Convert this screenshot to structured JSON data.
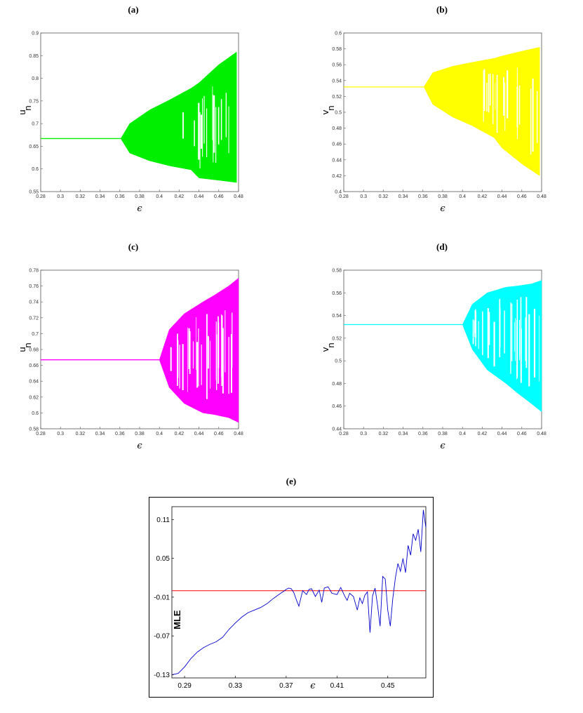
{
  "panels": [
    {
      "label": "(a)",
      "type": "bifurcation",
      "ylabel": "u",
      "ylabel_sub": "n",
      "xlabel": "ϵ",
      "color": "#00ee00",
      "xlim": [
        0.28,
        0.48
      ],
      "ylim": [
        0.55,
        0.9
      ],
      "xticks": [
        "0.28",
        "0.3",
        "0.32",
        "0.34",
        "0.36",
        "0.38",
        "0.4",
        "0.42",
        "0.44",
        "0.46",
        "0.48"
      ],
      "yticks": [
        "0.55",
        "0.6",
        "0.65",
        "0.7",
        "0.75",
        "0.8",
        "0.85",
        "0.9"
      ],
      "fixed_point": 0.667,
      "bifurcation_at": 0.361,
      "envelope": [
        {
          "x": 0.361,
          "lo": 0.667,
          "hi": 0.667
        },
        {
          "x": 0.37,
          "lo": 0.635,
          "hi": 0.7
        },
        {
          "x": 0.39,
          "lo": 0.618,
          "hi": 0.73
        },
        {
          "x": 0.41,
          "lo": 0.607,
          "hi": 0.752
        },
        {
          "x": 0.432,
          "lo": 0.598,
          "hi": 0.778
        },
        {
          "x": 0.44,
          "lo": 0.58,
          "hi": 0.79
        },
        {
          "x": 0.46,
          "lo": 0.575,
          "hi": 0.83
        },
        {
          "x": 0.478,
          "lo": 0.57,
          "hi": 0.858
        }
      ]
    },
    {
      "label": "(b)",
      "type": "bifurcation",
      "ylabel": "v",
      "ylabel_sub": "n",
      "xlabel": "ϵ",
      "color": "#ffff00",
      "xlim": [
        0.28,
        0.48
      ],
      "ylim": [
        0.4,
        0.6
      ],
      "xticks": [
        "0.28",
        "0.3",
        "0.32",
        "0.34",
        "0.36",
        "0.38",
        "0.4",
        "0.42",
        "0.44",
        "0.46",
        "0.48"
      ],
      "yticks": [
        "0.4",
        "0.42",
        "0.44",
        "0.46",
        "0.48",
        "0.5",
        "0.52",
        "0.54",
        "0.56",
        "0.58",
        "0.6"
      ],
      "fixed_point": 0.532,
      "bifurcation_at": 0.361,
      "envelope": [
        {
          "x": 0.361,
          "lo": 0.532,
          "hi": 0.532
        },
        {
          "x": 0.37,
          "lo": 0.51,
          "hi": 0.55
        },
        {
          "x": 0.39,
          "lo": 0.494,
          "hi": 0.558
        },
        {
          "x": 0.41,
          "lo": 0.483,
          "hi": 0.563
        },
        {
          "x": 0.432,
          "lo": 0.468,
          "hi": 0.568
        },
        {
          "x": 0.44,
          "lo": 0.455,
          "hi": 0.571
        },
        {
          "x": 0.46,
          "lo": 0.435,
          "hi": 0.577
        },
        {
          "x": 0.478,
          "lo": 0.42,
          "hi": 0.582
        }
      ]
    },
    {
      "label": "(c)",
      "type": "bifurcation",
      "ylabel": "u",
      "ylabel_sub": "n",
      "xlabel": "ϵ",
      "color": "#ff00ff",
      "xlim": [
        0.28,
        0.48
      ],
      "ylim": [
        0.58,
        0.78
      ],
      "xticks": [
        "0.28",
        "0.3",
        "0.32",
        "0.34",
        "0.36",
        "0.38",
        "0.4",
        "0.42",
        "0.44",
        "0.46",
        "0.48"
      ],
      "yticks": [
        "0.58",
        "0.6",
        "0.62",
        "0.64",
        "0.66",
        "0.68",
        "0.7",
        "0.72",
        "0.74",
        "0.76",
        "0.78"
      ],
      "fixed_point": 0.667,
      "bifurcation_at": 0.4,
      "envelope": [
        {
          "x": 0.4,
          "lo": 0.667,
          "hi": 0.667
        },
        {
          "x": 0.41,
          "lo": 0.632,
          "hi": 0.705
        },
        {
          "x": 0.425,
          "lo": 0.612,
          "hi": 0.725
        },
        {
          "x": 0.444,
          "lo": 0.6,
          "hi": 0.74
        },
        {
          "x": 0.455,
          "lo": 0.598,
          "hi": 0.748
        },
        {
          "x": 0.47,
          "lo": 0.594,
          "hi": 0.76
        },
        {
          "x": 0.48,
          "lo": 0.588,
          "hi": 0.77
        }
      ]
    },
    {
      "label": "(d)",
      "type": "bifurcation",
      "ylabel": "v",
      "ylabel_sub": "n",
      "xlabel": "ϵ",
      "color": "#00ffff",
      "xlim": [
        0.28,
        0.48
      ],
      "ylim": [
        0.44,
        0.58
      ],
      "xticks": [
        "0.28",
        "0.3",
        "0.32",
        "0.34",
        "0.36",
        "0.38",
        "0.4",
        "0.42",
        "0.44",
        "0.46",
        "0.48"
      ],
      "yticks": [
        "0.44",
        "0.46",
        "0.48",
        "0.5",
        "0.52",
        "0.54",
        "0.56",
        "0.58"
      ],
      "fixed_point": 0.532,
      "bifurcation_at": 0.4,
      "envelope": [
        {
          "x": 0.4,
          "lo": 0.532,
          "hi": 0.532
        },
        {
          "x": 0.41,
          "lo": 0.51,
          "hi": 0.55
        },
        {
          "x": 0.425,
          "lo": 0.492,
          "hi": 0.56
        },
        {
          "x": 0.444,
          "lo": 0.48,
          "hi": 0.565
        },
        {
          "x": 0.455,
          "lo": 0.472,
          "hi": 0.566
        },
        {
          "x": 0.47,
          "lo": 0.462,
          "hi": 0.568
        },
        {
          "x": 0.48,
          "lo": 0.455,
          "hi": 0.571
        }
      ]
    }
  ],
  "chart_data": [
    {
      "type": "scatter",
      "title": "(a)",
      "ylabel": "u_n",
      "xlabel": "ϵ",
      "xlim": [
        0.28,
        0.48
      ],
      "ylim": [
        0.55,
        0.9
      ]
    },
    {
      "type": "scatter",
      "title": "(b)",
      "ylabel": "v_n",
      "xlabel": "ϵ",
      "xlim": [
        0.28,
        0.48
      ],
      "ylim": [
        0.4,
        0.6
      ]
    },
    {
      "type": "scatter",
      "title": "(c)",
      "ylabel": "u_n",
      "xlabel": "ϵ",
      "xlim": [
        0.28,
        0.48
      ],
      "ylim": [
        0.58,
        0.78
      ]
    },
    {
      "type": "scatter",
      "title": "(d)",
      "ylabel": "v_n",
      "xlabel": "ϵ",
      "xlim": [
        0.28,
        0.48
      ],
      "ylim": [
        0.44,
        0.58
      ]
    },
    {
      "type": "line",
      "title": "(e)",
      "xlabel": "ϵ",
      "ylabel": "MLE",
      "xlim": [
        0.28,
        0.48
      ],
      "ylim": [
        -0.135,
        0.13
      ],
      "xticks": [
        "0.29",
        "0.33",
        "0.37",
        "0.41",
        "0.45"
      ],
      "yticks": [
        "0.11",
        "0.05",
        "-0.01",
        "-0.07",
        "-0.13"
      ],
      "reference_line": {
        "y": 0.0,
        "color": "#ff0000"
      },
      "line_color": "#0000cc",
      "x": [
        0.28,
        0.285,
        0.29,
        0.295,
        0.3,
        0.305,
        0.31,
        0.315,
        0.32,
        0.325,
        0.33,
        0.335,
        0.34,
        0.345,
        0.35,
        0.355,
        0.36,
        0.365,
        0.368,
        0.37,
        0.372,
        0.374,
        0.376,
        0.378,
        0.38,
        0.383,
        0.386,
        0.388,
        0.39,
        0.393,
        0.396,
        0.398,
        0.4,
        0.403,
        0.406,
        0.41,
        0.413,
        0.416,
        0.418,
        0.42,
        0.423,
        0.426,
        0.428,
        0.43,
        0.432,
        0.434,
        0.436,
        0.438,
        0.44,
        0.442,
        0.444,
        0.446,
        0.448,
        0.45,
        0.452,
        0.454,
        0.456,
        0.458,
        0.46,
        0.462,
        0.464,
        0.466,
        0.468,
        0.47,
        0.472,
        0.474,
        0.476,
        0.478,
        0.48
      ],
      "y": [
        -0.13,
        -0.128,
        -0.118,
        -0.105,
        -0.095,
        -0.088,
        -0.083,
        -0.079,
        -0.072,
        -0.06,
        -0.05,
        -0.041,
        -0.034,
        -0.03,
        -0.026,
        -0.02,
        -0.012,
        -0.005,
        -0.001,
        0.002,
        0.004,
        0.003,
        -0.003,
        -0.014,
        -0.024,
        0.0,
        -0.006,
        0.002,
        0.003,
        -0.009,
        0.001,
        -0.018,
        0.004,
        0.006,
        -0.004,
        -0.006,
        0.005,
        -0.008,
        -0.015,
        -0.004,
        -0.009,
        -0.03,
        -0.011,
        -0.02,
        -0.007,
        -0.002,
        -0.065,
        -0.008,
        0.004,
        -0.023,
        -0.055,
        0.022,
        0.018,
        -0.03,
        -0.055,
        -0.012,
        0.02,
        0.042,
        0.03,
        0.05,
        0.028,
        0.07,
        0.055,
        0.088,
        0.078,
        0.095,
        0.06,
        0.125,
        0.098
      ]
    }
  ],
  "panel_e": {
    "label": "(e)",
    "ylabel": "MLE",
    "xlabel": "ϵ"
  }
}
